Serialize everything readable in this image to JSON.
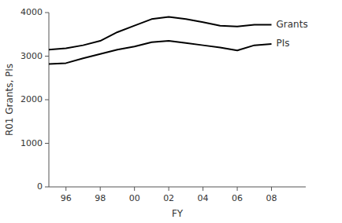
{
  "chart_data": {
    "type": "line",
    "xlabel": "FY",
    "ylabel": "R01 Grants, PIs",
    "x": [
      95,
      96,
      97,
      98,
      99,
      100,
      101,
      102,
      103,
      104,
      105,
      106,
      107,
      108
    ],
    "series": [
      {
        "name": "Grants",
        "color": "#000000",
        "values": [
          3150,
          3180,
          3250,
          3350,
          3550,
          3700,
          3850,
          3900,
          3850,
          3780,
          3700,
          3680,
          3720,
          3720
        ]
      },
      {
        "name": "PIs",
        "color": "#000000",
        "values": [
          2820,
          2840,
          2950,
          3050,
          3150,
          3220,
          3320,
          3350,
          3300,
          3250,
          3200,
          3130,
          3250,
          3280
        ]
      }
    ],
    "xlim": [
      95,
      110
    ],
    "xticks": [
      96,
      98,
      {
        "value": 100,
        "label": "00"
      },
      {
        "value": 102,
        "label": "02"
      },
      {
        "value": 104,
        "label": "04"
      },
      {
        "value": 106,
        "label": "06"
      },
      {
        "value": 108,
        "label": "08"
      }
    ],
    "ylim": [
      0,
      4000
    ],
    "yticks": [
      0,
      1000,
      2000,
      3000,
      4000
    ],
    "grid": false
  }
}
